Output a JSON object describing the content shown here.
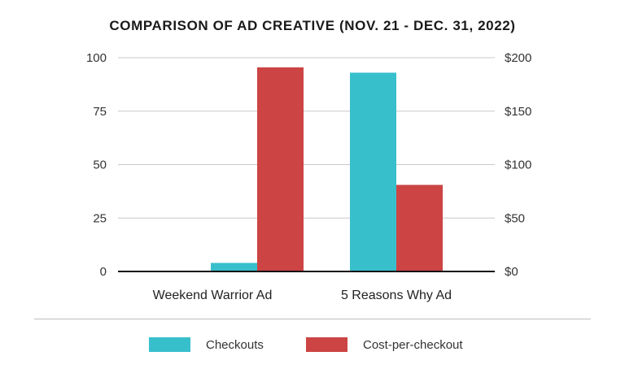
{
  "chart_data": {
    "type": "bar",
    "title": "COMPARISON OF AD CREATIVE (NOV. 21 - DEC. 31, 2022)",
    "categories": [
      "Weekend Warrior Ad",
      "5 Reasons Why Ad"
    ],
    "series": [
      {
        "name": "Checkouts",
        "axis": "left",
        "values": [
          4,
          93
        ],
        "color": "#38bfcc"
      },
      {
        "name": "Cost-per-checkout",
        "axis": "right",
        "values": [
          191,
          81
        ],
        "color": "#cc4444"
      }
    ],
    "y_left": {
      "ylim": [
        0,
        100
      ],
      "ticks": [
        "100",
        "75",
        "50",
        "25",
        "0"
      ],
      "tick_values": [
        100,
        75,
        50,
        25,
        0
      ]
    },
    "y_right": {
      "ylim": [
        0,
        200
      ],
      "ticks": [
        "$200",
        "$150",
        "$100",
        "$50",
        "$0"
      ],
      "tick_values": [
        200,
        150,
        100,
        50,
        0
      ]
    },
    "xlabel": "",
    "ylabel": "",
    "grid": true,
    "legend_position": "bottom"
  }
}
